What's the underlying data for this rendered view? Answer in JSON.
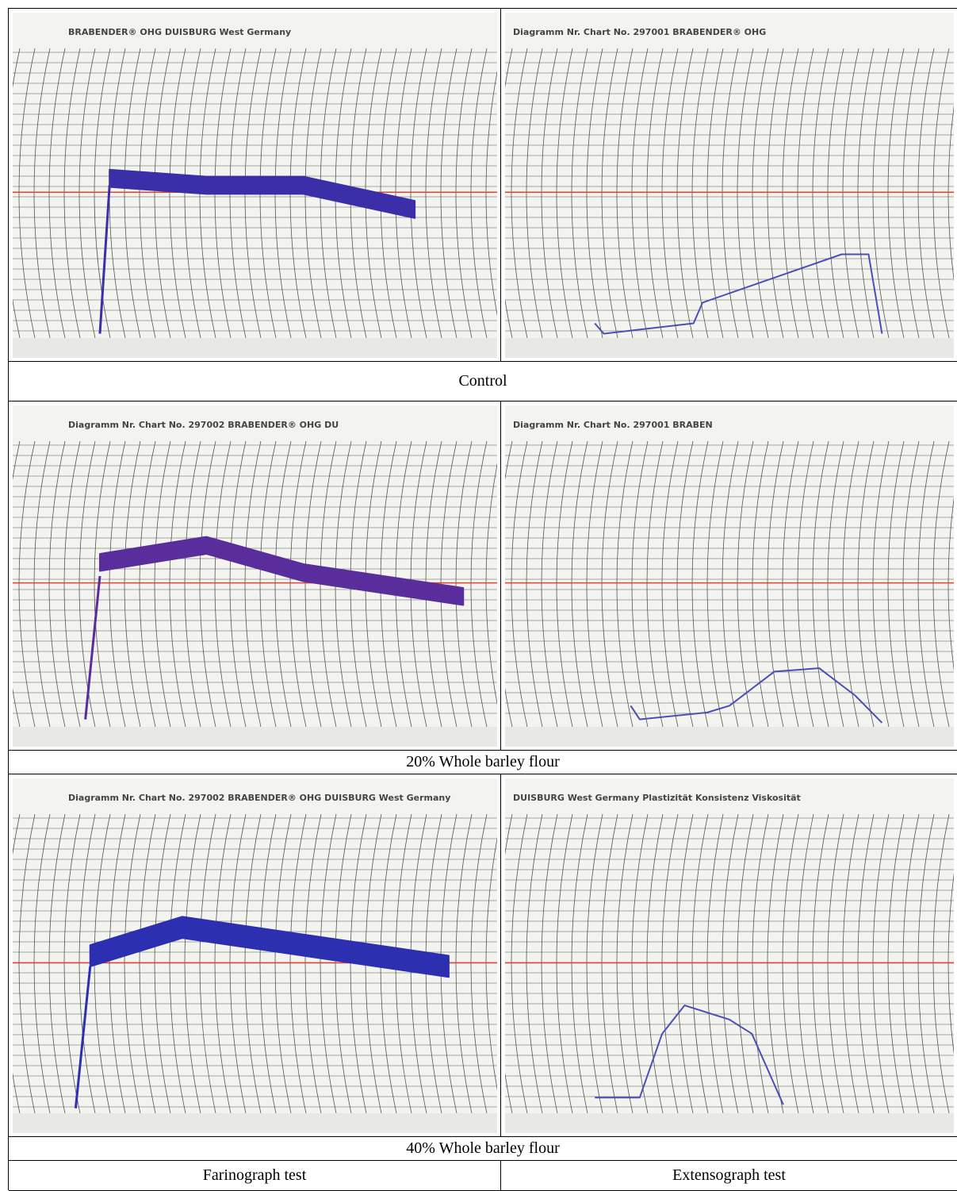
{
  "table": {
    "rows": [
      {
        "caption": "Control",
        "panels": [
          "BRABENDER® OHG DUISBURG West Germany",
          "Diagramm Nr. Chart No. 297001 BRABENDER® OHG"
        ]
      },
      {
        "caption": "20% Whole barley flour",
        "panels": [
          "Diagramm Nr. Chart No. 297002 BRABENDER® OHG DU",
          "Diagramm Nr. Chart No. 297001 BRABEN"
        ]
      },
      {
        "caption": "40% Whole barley flour",
        "panels": [
          "Diagramm Nr. Chart No. 297002 BRABENDER® OHG DUISBURG West Germany",
          "DUISBURG West Germany Plastizität Konsistenz Viskosität"
        ]
      }
    ],
    "columns": [
      "Farinograph test",
      "Extensograph test"
    ]
  }
}
